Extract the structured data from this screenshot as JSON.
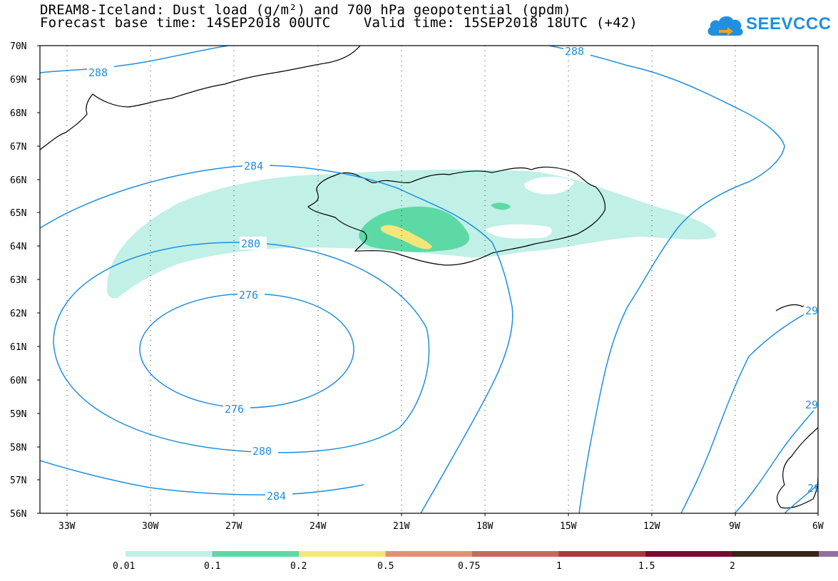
{
  "header": {
    "title_line1": "DREAM8-Iceland: Dust load (g/m²) and 700 hPa geopotential (gpdm)",
    "title_line2": "Forecast base time: 14SEP2018 00UTC    Valid time: 15SEP2018 18UTC (+42)",
    "logo_text": "SEEVCCC"
  },
  "axes": {
    "lat_labels": [
      "70N",
      "69N",
      "68N",
      "67N",
      "66N",
      "65N",
      "64N",
      "63N",
      "62N",
      "61N",
      "60N",
      "59N",
      "58N",
      "57N",
      "56N"
    ],
    "lon_labels": [
      "33W",
      "30W",
      "27W",
      "24W",
      "21W",
      "18W",
      "15W",
      "12W",
      "9W",
      "6W"
    ]
  },
  "contours": {
    "labels": [
      "288",
      "288",
      "284",
      "284",
      "280",
      "280",
      "276",
      "276",
      "29",
      "29",
      "29"
    ]
  },
  "colorbar": {
    "labels": [
      "0.01",
      "0.1",
      "0.2",
      "0.5",
      "0.75",
      "1",
      "1.5",
      "2"
    ],
    "colors": [
      "#c0f0e6",
      "#5dd9a5",
      "#f5e67a",
      "#e49070",
      "#c46a5e",
      "#a83a3c",
      "#7a0a30",
      "#3a2418",
      "#9370a0"
    ]
  },
  "colors": {
    "contour": "#1f8fe0",
    "coast": "#000000"
  }
}
